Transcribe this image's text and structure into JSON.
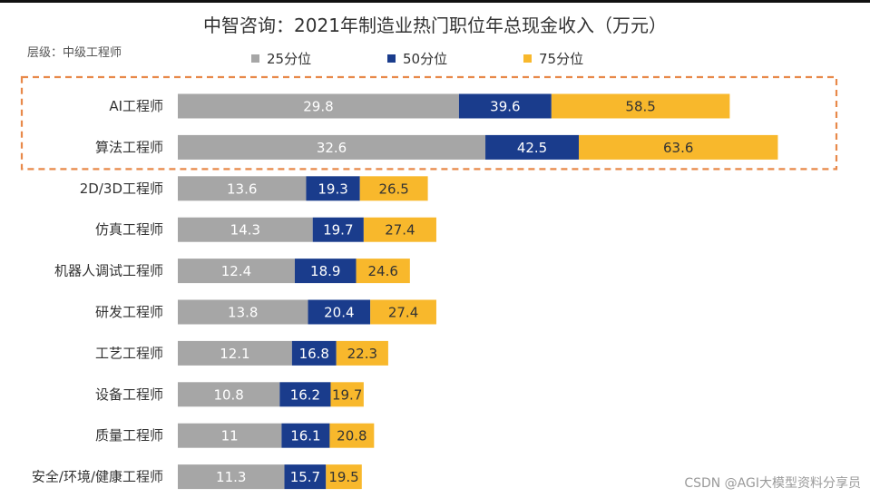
{
  "title": "中智咨询：2021年制造业热门职位年总现金收入（万元）",
  "subtitle": "层级：中级工程师",
  "watermark": "CSDN @AGI大模型资料分享员",
  "colors": {
    "p25": "#a6a6a6",
    "p50": "#1a3c8c",
    "p75": "#f8b82c",
    "highlight_border": "#e8894a"
  },
  "chart_data": {
    "type": "bar",
    "orientation": "horizontal",
    "stacked": true,
    "title": "中智咨询：2021年制造业热门职位年总现金收入（万元）",
    "categories": [
      "AI工程师",
      "算法工程师",
      "2D/3D工程师",
      "仿真工程师",
      "机器人调试工程师",
      "研发工程师",
      "工艺工程师",
      "设备工程师",
      "质量工程师",
      "安全/环境/健康工程师"
    ],
    "series": [
      {
        "name": "25分位",
        "values": [
          "29.8",
          "32.6",
          "13.6",
          "14.3",
          "12.4",
          "13.8",
          "12.1",
          "10.8",
          "11",
          "11.3"
        ]
      },
      {
        "name": "50分位",
        "values": [
          "39.6",
          "42.5",
          "19.3",
          "19.7",
          "18.9",
          "20.4",
          "16.8",
          "16.2",
          "16.1",
          "15.7"
        ]
      },
      {
        "name": "75分位",
        "values": [
          "58.5",
          "63.6",
          "26.5",
          "27.4",
          "24.6",
          "27.4",
          "22.3",
          "19.7",
          "20.8",
          "19.5"
        ]
      }
    ],
    "highlighted": [
      "AI工程师",
      "算法工程师"
    ],
    "legend_position": "top",
    "grid": false
  }
}
